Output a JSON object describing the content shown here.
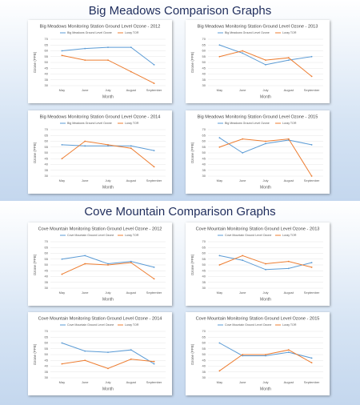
{
  "headings": [
    "Big Meadows Comparison Graphs",
    "Cove Mountain Comparison Graphs"
  ],
  "chart_data": [
    {
      "type": "line",
      "title": "Big Meadows Monitoring Station Ground Level Ozone - 2012",
      "x_label": "Month",
      "y_label": "Ozone (PPB)",
      "categories": [
        "May",
        "June",
        "July",
        "August",
        "September"
      ],
      "ylim": [
        30,
        70
      ],
      "yticks": [
        30,
        35,
        40,
        45,
        50,
        55,
        60,
        65,
        70
      ],
      "grid": true,
      "legend": "top",
      "series": [
        {
          "name": "Big Meadows Ground Level Ozone",
          "color": "#5b9bd5",
          "values": [
            60,
            62,
            63,
            63,
            48
          ]
        },
        {
          "name": "Luray TOR",
          "color": "#ed7d31",
          "values": [
            56,
            52,
            52,
            42,
            32
          ]
        }
      ]
    },
    {
      "type": "line",
      "title": "Big Meadows Monitoring Station Ground Level Ozone - 2013",
      "x_label": "Month",
      "y_label": "Ozone (PPB)",
      "categories": [
        "May",
        "June",
        "July",
        "August",
        "September"
      ],
      "ylim": [
        30,
        70
      ],
      "yticks": [
        30,
        35,
        40,
        45,
        50,
        55,
        60,
        65,
        70
      ],
      "grid": true,
      "legend": "top",
      "series": [
        {
          "name": "Big Meadows Ground Level Ozone",
          "color": "#5b9bd5",
          "values": [
            65,
            58,
            48,
            52,
            55
          ]
        },
        {
          "name": "Luray TOR",
          "color": "#ed7d31",
          "values": [
            55,
            60,
            52,
            54,
            38
          ]
        }
      ]
    },
    {
      "type": "line",
      "title": "Big Meadows Monitoring Station Ground Level Ozone - 2014",
      "x_label": "Month",
      "y_label": "Ozone (PPB)",
      "categories": [
        "May",
        "June",
        "July",
        "August",
        "September"
      ],
      "ylim": [
        30,
        70
      ],
      "yticks": [
        30,
        35,
        40,
        45,
        50,
        55,
        60,
        65,
        70
      ],
      "grid": true,
      "legend": "top",
      "series": [
        {
          "name": "Big Meadows Ground Level Ozone",
          "color": "#5b9bd5",
          "values": [
            57,
            56,
            56,
            56,
            52
          ]
        },
        {
          "name": "Luray TOR",
          "color": "#ed7d31",
          "values": [
            45,
            60,
            57,
            54,
            38
          ]
        }
      ]
    },
    {
      "type": "line",
      "title": "Big Meadows Monitoring Station Ground Level Ozone - 2015",
      "x_label": "Month",
      "y_label": "Ozone (PPB)",
      "categories": [
        "May",
        "June",
        "July",
        "August",
        "September"
      ],
      "ylim": [
        30,
        70
      ],
      "yticks": [
        30,
        35,
        40,
        45,
        50,
        55,
        60,
        65,
        70
      ],
      "grid": true,
      "legend": "top",
      "series": [
        {
          "name": "Big Meadows Ground Level Ozone",
          "color": "#5b9bd5",
          "values": [
            63,
            50,
            58,
            61,
            57
          ]
        },
        {
          "name": "Luray TOR",
          "color": "#ed7d31",
          "values": [
            55,
            62,
            60,
            62,
            30
          ]
        }
      ]
    },
    {
      "type": "line",
      "title": "Cove Mountain Monitoring Station Ground Level Ozone - 2012",
      "x_label": "Month",
      "y_label": "Ozone (PPB)",
      "categories": [
        "May",
        "June",
        "July",
        "August",
        "September"
      ],
      "ylim": [
        30,
        70
      ],
      "yticks": [
        30,
        35,
        40,
        45,
        50,
        55,
        60,
        65,
        70
      ],
      "grid": true,
      "legend": "top",
      "series": [
        {
          "name": "Cove Mountain Ground Level Ozone",
          "color": "#5b9bd5",
          "values": [
            55,
            58,
            51,
            53,
            48
          ]
        },
        {
          "name": "Luray TOR",
          "color": "#ed7d31",
          "values": [
            42,
            51,
            50,
            52,
            38
          ]
        }
      ]
    },
    {
      "type": "line",
      "title": "Cove Mountain Monitoring Station Ground Level Ozone - 2013",
      "x_label": "Month",
      "y_label": "Ozone (PPB)",
      "categories": [
        "May",
        "June",
        "July",
        "August",
        "September"
      ],
      "ylim": [
        30,
        70
      ],
      "yticks": [
        30,
        35,
        40,
        45,
        50,
        55,
        60,
        65,
        70
      ],
      "grid": true,
      "legend": "top",
      "series": [
        {
          "name": "Cove Mountain Ground Level Ozone",
          "color": "#5b9bd5",
          "values": [
            58,
            54,
            46,
            47,
            52
          ]
        },
        {
          "name": "Luray TOR",
          "color": "#ed7d31",
          "values": [
            50,
            58,
            51,
            53,
            48
          ]
        }
      ]
    },
    {
      "type": "line",
      "title": "Cove Mountain Monitoring Station Ground Level Ozone - 2014",
      "x_label": "Month",
      "y_label": "Ozone (PPB)",
      "categories": [
        "May",
        "June",
        "July",
        "August",
        "September"
      ],
      "ylim": [
        30,
        70
      ],
      "yticks": [
        30,
        35,
        40,
        45,
        50,
        55,
        60,
        65,
        70
      ],
      "grid": true,
      "legend": "top",
      "series": [
        {
          "name": "Cove Mountain Ground Level Ozone",
          "color": "#5b9bd5",
          "values": [
            60,
            53,
            52,
            54,
            42
          ]
        },
        {
          "name": "Luray TOR",
          "color": "#ed7d31",
          "values": [
            42,
            45,
            38,
            46,
            44
          ]
        }
      ]
    },
    {
      "type": "line",
      "title": "Cove Mountain Monitoring Station Ground Level Ozone - 2015",
      "x_label": "Month",
      "y_label": "Ozone (PPB)",
      "categories": [
        "May",
        "June",
        "July",
        "August",
        "September"
      ],
      "ylim": [
        30,
        70
      ],
      "yticks": [
        30,
        35,
        40,
        45,
        50,
        55,
        60,
        65,
        70
      ],
      "grid": true,
      "legend": "top",
      "series": [
        {
          "name": "Cove Mountain Ground Level Ozone",
          "color": "#5b9bd5",
          "values": [
            60,
            49,
            49,
            52,
            47
          ]
        },
        {
          "name": "Luray TOR",
          "color": "#ed7d31",
          "values": [
            36,
            50,
            50,
            54,
            43
          ]
        }
      ]
    }
  ]
}
